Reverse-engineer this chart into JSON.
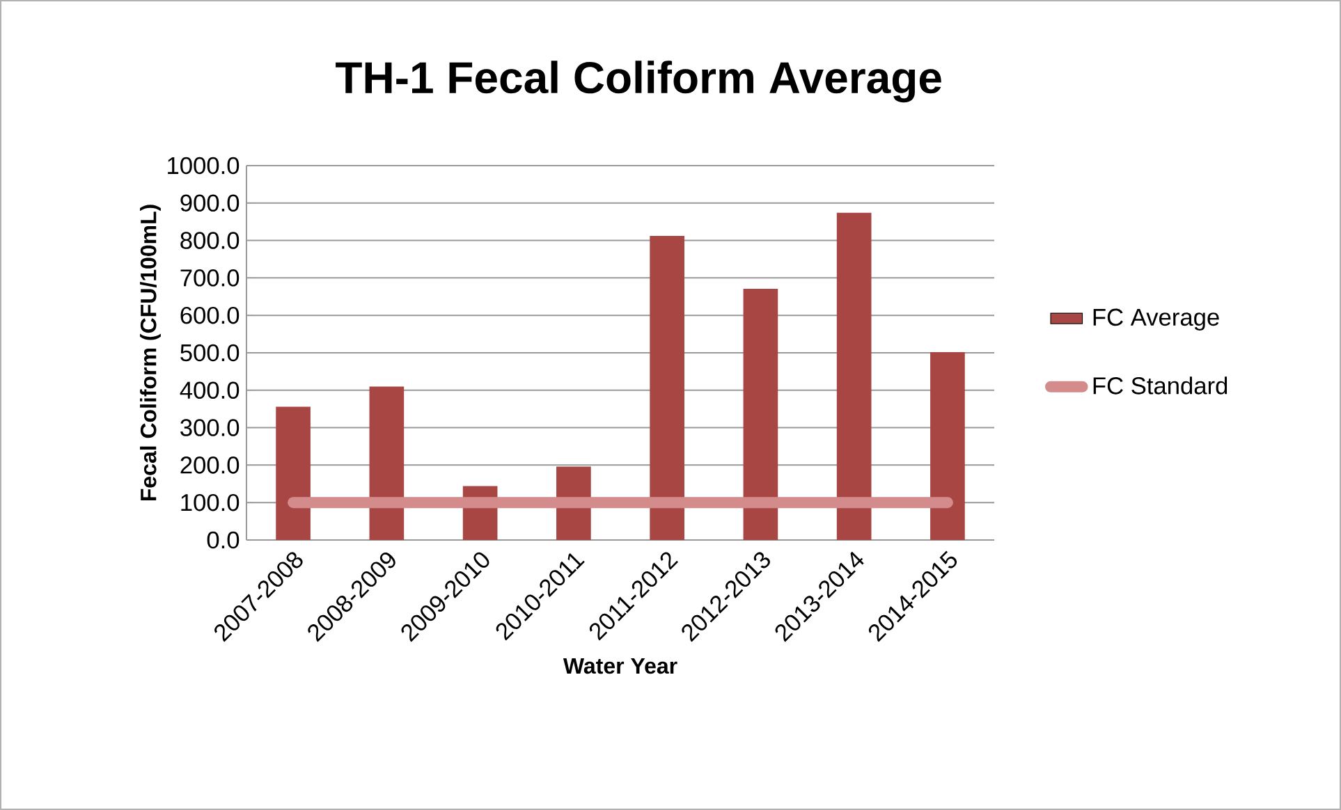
{
  "chart_data": {
    "type": "bar",
    "title": "TH-1 Fecal Coliform Average",
    "xlabel": "Water Year",
    "ylabel": "Fecal Coliform (CFU/100mL)",
    "categories": [
      "2007-2008",
      "2008-2009",
      "2009-2010",
      "2010-2011",
      "2011-2012",
      "2012-2013",
      "2013-2014",
      "2014-2015"
    ],
    "series": [
      {
        "name": "FC Average",
        "color": "#a84644",
        "values": [
          356,
          410,
          144,
          196,
          812,
          671,
          874,
          502
        ]
      },
      {
        "name": "FC Standard",
        "type": "line",
        "color": "#d38b8b",
        "values": [
          100,
          100,
          100,
          100,
          100,
          100,
          100,
          100
        ]
      }
    ],
    "ylim": [
      0,
      1000
    ],
    "yticks": [
      {
        "value": 0,
        "label": "0.0"
      },
      {
        "value": 100,
        "label": "100.0"
      },
      {
        "value": 200,
        "label": "200.0"
      },
      {
        "value": 300,
        "label": "300.0"
      },
      {
        "value": 400,
        "label": "400.0"
      },
      {
        "value": 500,
        "label": "500.0"
      },
      {
        "value": 600,
        "label": "600.0"
      },
      {
        "value": 700,
        "label": "700.0"
      },
      {
        "value": 800,
        "label": "800.0"
      },
      {
        "value": 900,
        "label": "900.0"
      },
      {
        "value": 1000,
        "label": "1000.0"
      }
    ],
    "grid": "y",
    "legend": "right"
  }
}
